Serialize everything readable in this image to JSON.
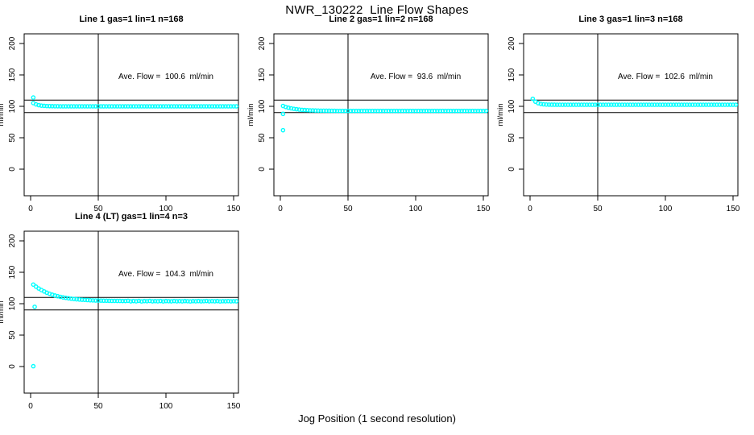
{
  "title": "NWR_130222  Line Flow Shapes",
  "xlabel": "Jog Position (1 second resolution)",
  "chart_data": {
    "type": "scatter",
    "point_color": "#00FFFF",
    "axis_color": "#000000",
    "grid": false,
    "x_ticks": [
      0,
      50,
      100,
      150
    ],
    "y_ticks": [
      0,
      50,
      100,
      150,
      200
    ],
    "x_range": [
      0,
      153
    ],
    "y_range": [
      -44,
      215
    ],
    "panels": [
      {
        "title": "Line 1 gas=1 lin=1 n=168",
        "ylabel": "ml/min",
        "ave_flow": 100.6,
        "ave_label": "Ave. Flow =  100.6  ml/min",
        "ref_lines": [
          110,
          90
        ],
        "vline_x": 50,
        "x_start": 2,
        "x_step": 2,
        "y": [
          105.2,
          103.1,
          101.9,
          101.1,
          100.7,
          100.4,
          100.3,
          100.2,
          100.1,
          100.1,
          100,
          100,
          100,
          100,
          100,
          100,
          100,
          100,
          100,
          100,
          100,
          100,
          100,
          100,
          100,
          100,
          100,
          100,
          100,
          100,
          100,
          100,
          100,
          100,
          100,
          100,
          100,
          100,
          100,
          100,
          100,
          100,
          100,
          100,
          100,
          100,
          100,
          100,
          100,
          100,
          100,
          100,
          100,
          100,
          100,
          100,
          100,
          100,
          100,
          100,
          100,
          100,
          100,
          100,
          100,
          100,
          100,
          100,
          100,
          100,
          100,
          100,
          100,
          100,
          100,
          100
        ],
        "outliers": [
          [
            2,
            114
          ]
        ]
      },
      {
        "title": "Line 2 gas=1 lin=2 n=168",
        "ylabel": "ml/min",
        "ave_flow": 93.6,
        "ave_label": "Ave. Flow =  93.6  ml/min",
        "ref_lines": [
          110,
          90
        ],
        "vline_x": 50,
        "x_start": 2,
        "x_step": 2,
        "y": [
          100.6,
          99.0,
          97.8,
          96.8,
          96.0,
          95.4,
          94.8,
          94.4,
          94.1,
          93.9,
          93.6,
          93.5,
          93.3,
          93.2,
          93.1,
          93.1,
          93.0,
          93.0,
          92.9,
          92.9,
          92.8,
          92.8,
          92.8,
          92.8,
          92.8,
          92.8,
          92.8,
          92.8,
          92.8,
          92.8,
          92.8,
          92.8,
          92.8,
          92.8,
          92.8,
          92.8,
          92.8,
          92.8,
          92.8,
          92.8,
          92.8,
          92.8,
          92.8,
          92.8,
          92.8,
          92.8,
          92.8,
          92.8,
          92.8,
          92.8,
          92.8,
          92.8,
          92.8,
          92.8,
          92.8,
          92.8,
          92.8,
          92.8,
          92.8,
          92.8,
          92.8,
          92.8,
          92.8,
          92.8,
          92.8,
          92.8,
          92.8,
          92.8,
          92.8,
          92.8,
          92.8,
          92.8,
          92.8,
          92.8,
          92.8,
          92.8
        ],
        "outliers": [
          [
            2,
            88
          ],
          [
            2,
            62
          ]
        ]
      },
      {
        "title": "Line 3 gas=1 lin=3 n=168",
        "ylabel": "ml/min",
        "ave_flow": 102.6,
        "ave_label": "Ave. Flow =  102.6  ml/min",
        "ref_lines": [
          110,
          90
        ],
        "vline_x": 50,
        "x_start": 2,
        "x_step": 2,
        "y": [
          112.0,
          107.4,
          105.0,
          103.8,
          103.2,
          102.8,
          102.7,
          102.6,
          102.6,
          102.5,
          102.5,
          102.5,
          102.5,
          102.5,
          102.5,
          102.5,
          102.5,
          102.5,
          102.5,
          102.5,
          102.5,
          102.5,
          102.5,
          102.5,
          102.5,
          102.5,
          102.5,
          102.5,
          102.5,
          102.5,
          102.5,
          102.5,
          102.5,
          102.5,
          102.5,
          102.5,
          102.5,
          102.5,
          102.5,
          102.5,
          102.5,
          102.5,
          102.5,
          102.5,
          102.5,
          102.5,
          102.5,
          102.5,
          102.5,
          102.5,
          102.5,
          102.5,
          102.5,
          102.5,
          102.5,
          102.5,
          102.5,
          102.5,
          102.5,
          102.5,
          102.5,
          102.5,
          102.5,
          102.5,
          102.5,
          102.5,
          102.5,
          102.5,
          102.5,
          102.5,
          102.5,
          102.5,
          102.5,
          102.5,
          102.5,
          102.5
        ],
        "outliers": []
      },
      {
        "title": "Line 4 (LT) gas=1 lin=4 n=3",
        "ylabel": "ml/min",
        "ave_flow": 104.3,
        "ave_label": "Ave. Flow =  104.3  ml/min",
        "ref_lines": [
          110,
          90
        ],
        "vline_x": 50,
        "x_start": 2,
        "x_step": 2,
        "y": [
          130.4,
          127.1,
          124.2,
          121.7,
          119.5,
          117.5,
          115.8,
          114.3,
          113.0,
          111.9,
          110.9,
          110.0,
          109.3,
          108.6,
          108.0,
          107.5,
          107.0,
          106.7,
          106.3,
          106.0,
          105.8,
          105.5,
          105.3,
          105.1,
          105.0,
          104.9,
          104.8,
          104.7,
          104.6,
          104.5,
          104.5,
          104.4,
          104.4,
          104.3,
          104.3,
          104.6,
          103.8,
          104.3,
          103.9,
          104.5,
          103.7,
          104.2,
          104.0,
          104.4,
          103.8,
          104.1,
          103.9,
          104.3,
          103.7,
          104.2,
          104.0,
          103.8,
          104.3,
          103.9,
          104.1,
          103.8,
          104.2,
          104.0,
          103.7,
          104.1,
          103.9,
          104.2,
          103.8,
          104.0,
          104.3,
          103.8,
          104.1,
          103.9,
          104.2,
          103.7,
          104.0,
          103.9,
          104.1,
          103.8,
          104.0,
          103.9
        ],
        "outliers": [
          [
            2,
            0.5
          ],
          [
            3,
            95
          ]
        ]
      }
    ]
  }
}
